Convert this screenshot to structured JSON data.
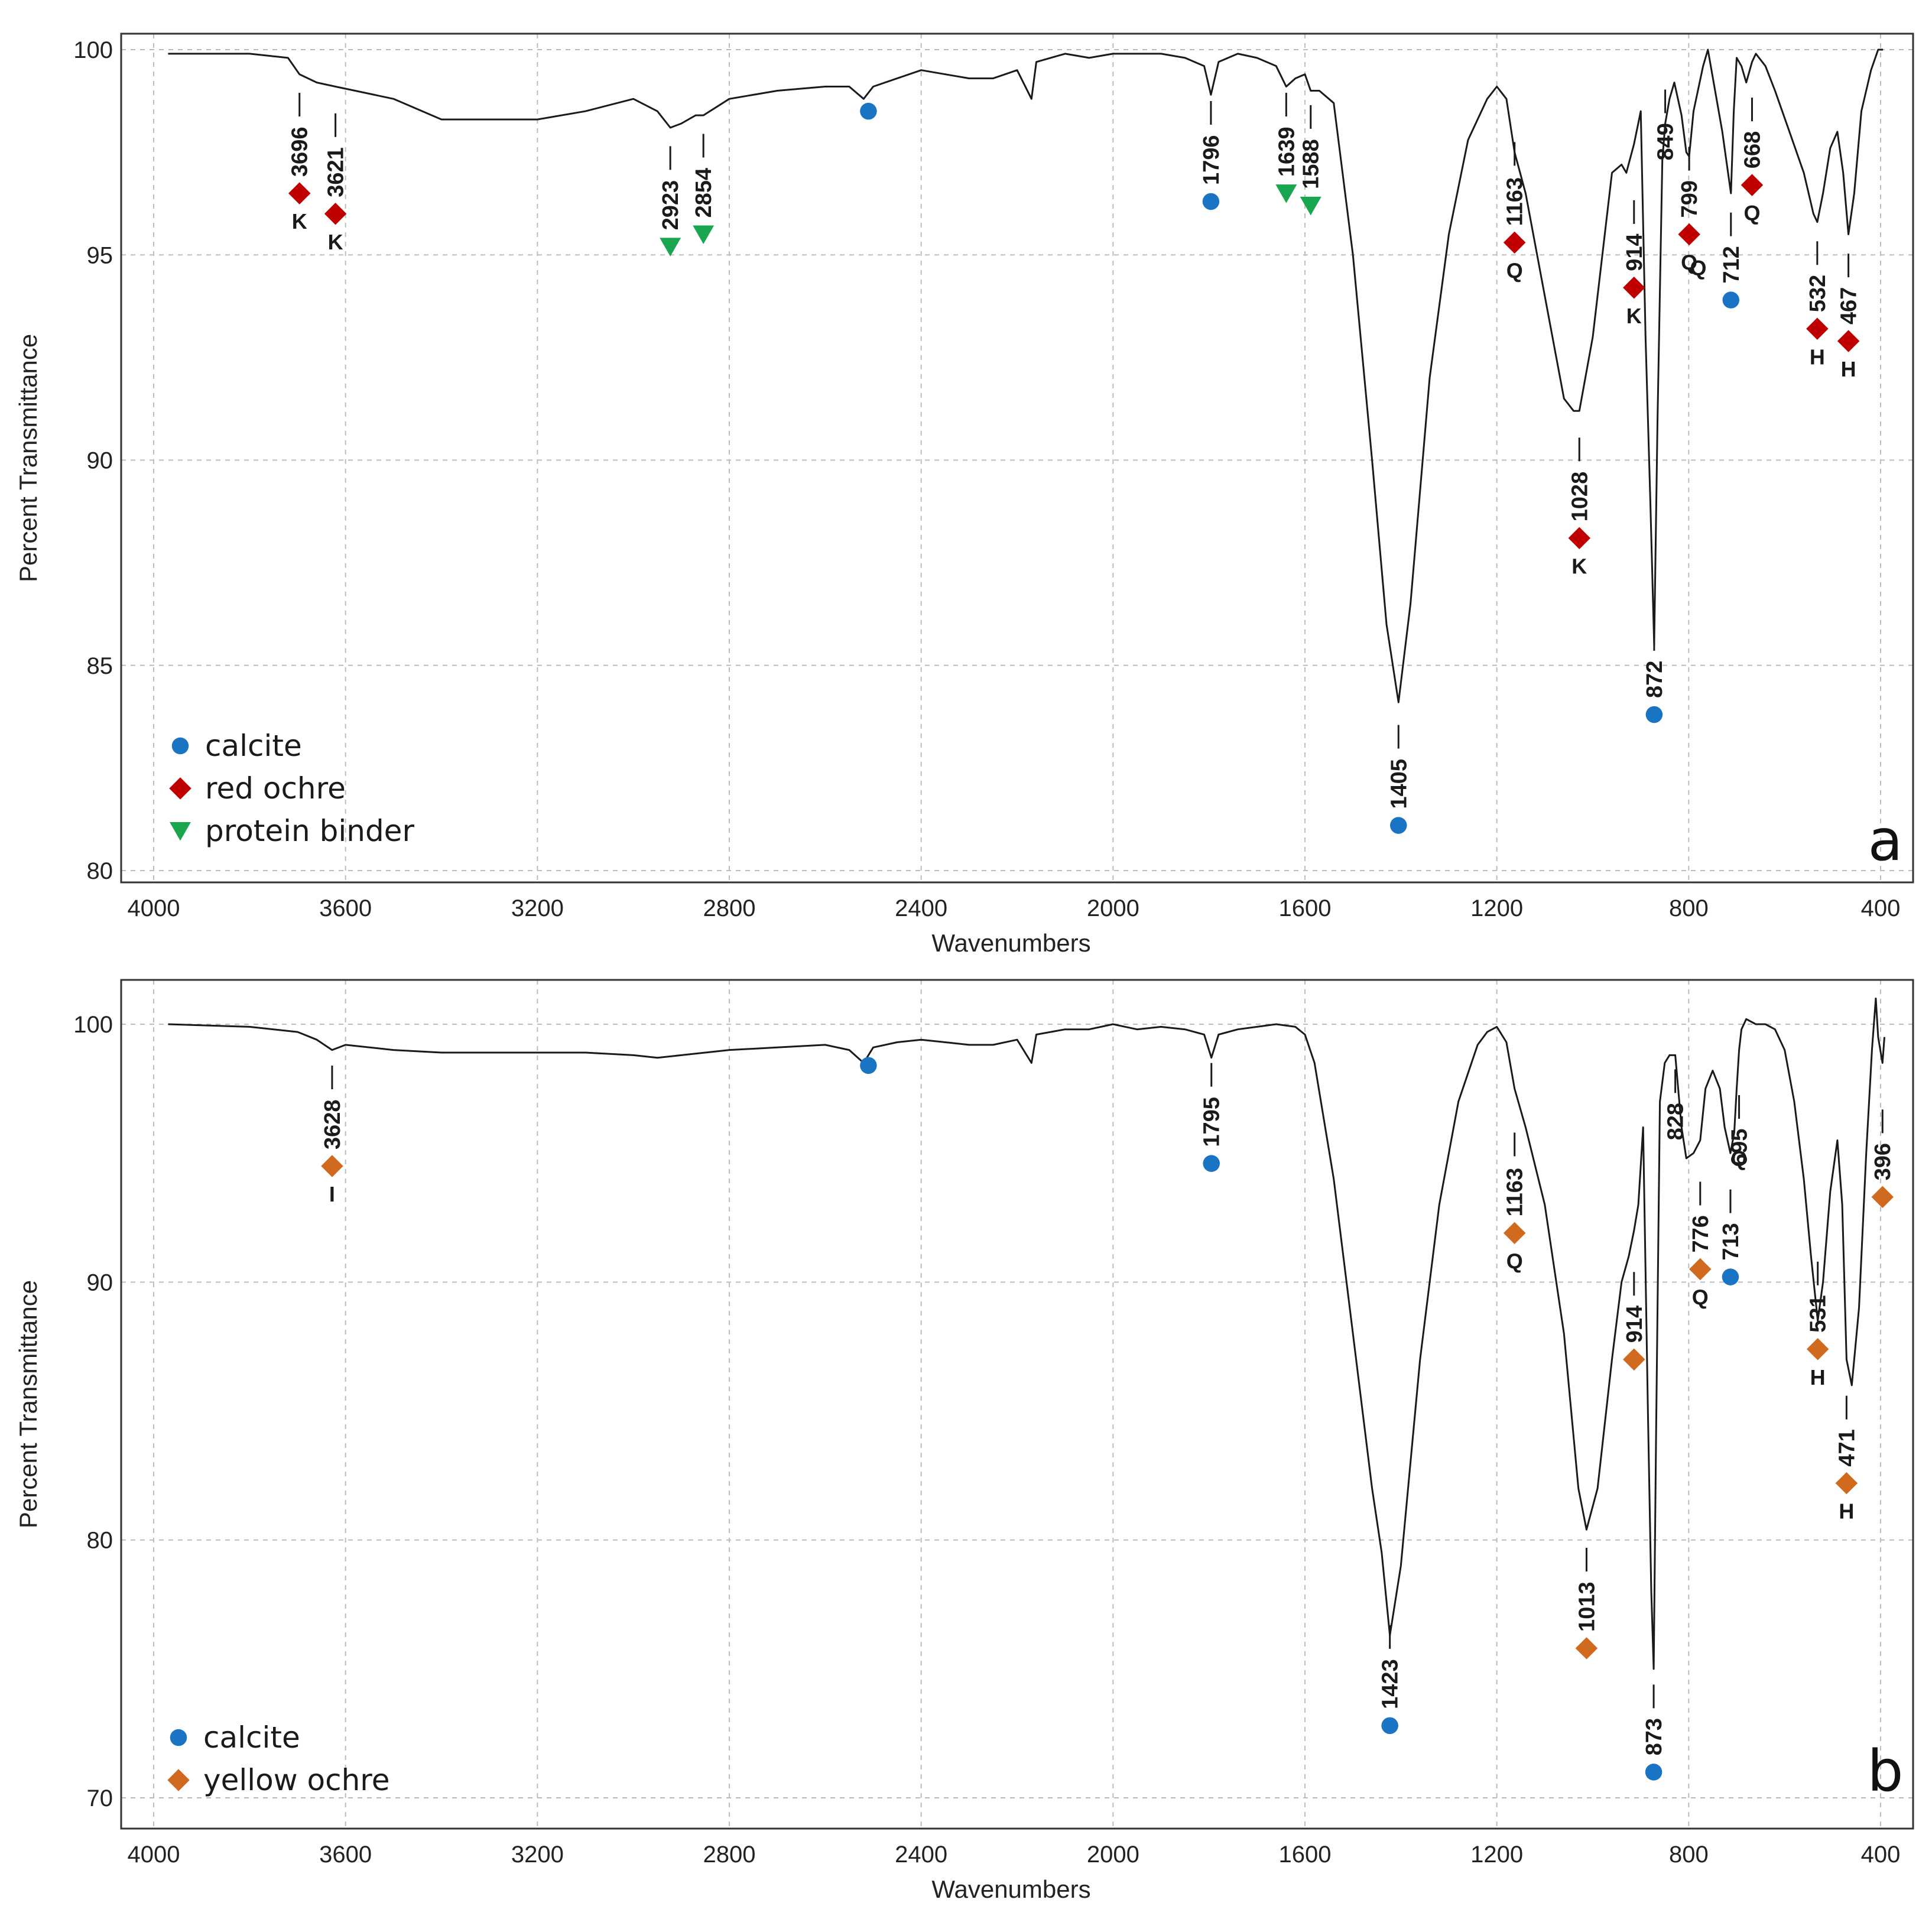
{
  "colors": {
    "calcite": "#1a74c4",
    "red_ochre": "#c00000",
    "protein_binder": "#1aa54f",
    "yellow_ochre": "#d06a1e",
    "line": "#1a1a1a"
  },
  "chart_data": [
    {
      "type": "line",
      "panel_label": "a",
      "xlabel": "Wavenumbers",
      "ylabel": "Percent Transmittance",
      "xlim": [
        4000,
        400
      ],
      "ylim": [
        80,
        100
      ],
      "xticks": [
        4000,
        3600,
        3200,
        2800,
        2400,
        2000,
        1600,
        1200,
        800,
        400
      ],
      "yticks": [
        80,
        85,
        90,
        95,
        100
      ],
      "grid": true,
      "legend_position": "bottom-left",
      "legend": [
        {
          "label": "calcite",
          "marker": "circle",
          "color": "#1a74c4"
        },
        {
          "label": "red ochre",
          "marker": "diamond",
          "color": "#c00000"
        },
        {
          "label": "protein binder",
          "marker": "triangle-down",
          "color": "#1aa54f"
        }
      ],
      "series": [
        {
          "name": "spectrum",
          "x": [
            3970,
            3800,
            3720,
            3696,
            3660,
            3621,
            3580,
            3500,
            3400,
            3350,
            3200,
            3100,
            3000,
            2950,
            2923,
            2900,
            2870,
            2854,
            2800,
            2700,
            2600,
            2550,
            2520,
            2500,
            2450,
            2400,
            2350,
            2300,
            2250,
            2200,
            2170,
            2160,
            2100,
            2050,
            2000,
            1950,
            1900,
            1850,
            1810,
            1796,
            1780,
            1740,
            1700,
            1660,
            1639,
            1620,
            1600,
            1588,
            1570,
            1540,
            1500,
            1460,
            1430,
            1405,
            1380,
            1340,
            1300,
            1260,
            1220,
            1200,
            1180,
            1163,
            1140,
            1100,
            1060,
            1040,
            1028,
            1000,
            960,
            940,
            930,
            914,
            900,
            890,
            880,
            872,
            865,
            855,
            849,
            840,
            830,
            815,
            805,
            799,
            790,
            770,
            760,
            745,
            730,
            718,
            712,
            706,
            700,
            690,
            680,
            668,
            660,
            640,
            620,
            590,
            560,
            540,
            532,
            520,
            505,
            490,
            478,
            467,
            455,
            440,
            420,
            405,
            395
          ],
          "y": [
            99.9,
            99.9,
            99.8,
            99.4,
            99.2,
            99.1,
            99.0,
            98.8,
            98.3,
            98.3,
            98.3,
            98.5,
            98.8,
            98.5,
            98.1,
            98.2,
            98.4,
            98.4,
            98.8,
            99.0,
            99.1,
            99.1,
            98.8,
            99.1,
            99.3,
            99.5,
            99.4,
            99.3,
            99.3,
            99.5,
            98.8,
            99.7,
            99.9,
            99.8,
            99.9,
            99.9,
            99.9,
            99.8,
            99.6,
            98.9,
            99.7,
            99.9,
            99.8,
            99.6,
            99.1,
            99.3,
            99.4,
            99.0,
            99.0,
            98.7,
            95.0,
            90.0,
            86.0,
            84.1,
            86.5,
            92.0,
            95.5,
            97.8,
            98.8,
            99.1,
            98.8,
            97.5,
            96.5,
            94.0,
            91.5,
            91.2,
            91.2,
            93.0,
            97.0,
            97.2,
            97.0,
            97.7,
            98.5,
            93.0,
            89.0,
            85.5,
            91.0,
            97.3,
            98.2,
            98.8,
            99.2,
            98.4,
            97.5,
            97.4,
            98.5,
            99.6,
            100.0,
            99.0,
            98.0,
            97.0,
            96.5,
            98.5,
            99.8,
            99.6,
            99.2,
            99.7,
            99.9,
            99.6,
            99.0,
            98.0,
            97.0,
            96.0,
            95.8,
            96.5,
            97.6,
            98.0,
            97.0,
            95.5,
            96.5,
            98.5,
            99.5,
            100.0,
            100.0
          ]
        }
      ],
      "annotations": [
        {
          "label": "3696",
          "x": 3696,
          "marker": "diamond",
          "color": "#c00000",
          "marker_y": 96.5,
          "code": "K"
        },
        {
          "label": "3621",
          "x": 3621,
          "marker": "diamond",
          "color": "#c00000",
          "marker_y": 96.0,
          "code": "K"
        },
        {
          "label": "2923",
          "x": 2923,
          "marker": "triangle-down",
          "color": "#1aa54f",
          "marker_y": 95.2,
          "code": ""
        },
        {
          "label": "2854",
          "x": 2854,
          "marker": "triangle-down",
          "color": "#1aa54f",
          "marker_y": 95.5,
          "code": ""
        },
        {
          "label": "",
          "x": 2510,
          "marker": "circle",
          "color": "#1a74c4",
          "marker_y": 98.5,
          "code": ""
        },
        {
          "label": "1796",
          "x": 1796,
          "marker": "circle",
          "color": "#1a74c4",
          "marker_y": 96.3,
          "code": ""
        },
        {
          "label": "1639",
          "x": 1639,
          "marker": "triangle-down",
          "color": "#1aa54f",
          "marker_y": 96.5,
          "code": ""
        },
        {
          "label": "1588",
          "x": 1588,
          "marker": "triangle-down",
          "color": "#1aa54f",
          "marker_y": 96.2,
          "code": ""
        },
        {
          "label": "1405",
          "x": 1405,
          "marker": "circle",
          "color": "#1a74c4",
          "marker_y": 81.1,
          "code": ""
        },
        {
          "label": "1163",
          "x": 1163,
          "marker": "diamond",
          "color": "#c00000",
          "marker_y": 95.3,
          "code": "Q"
        },
        {
          "label": "1028",
          "x": 1028,
          "marker": "diamond",
          "color": "#c00000",
          "marker_y": 88.1,
          "code": "K"
        },
        {
          "label": "914",
          "x": 914,
          "marker": "diamond",
          "color": "#c00000",
          "marker_y": 94.2,
          "code": "K"
        },
        {
          "label": "872",
          "x": 872,
          "marker": "circle",
          "color": "#1a74c4",
          "marker_y": 83.8,
          "code": ""
        },
        {
          "label": "849",
          "x": 849,
          "marker": "",
          "color": "",
          "marker_y": null,
          "code": ""
        },
        {
          "label": "799",
          "x": 799,
          "marker": "diamond",
          "color": "#c00000",
          "marker_y": 95.5,
          "code": "Q"
        },
        {
          "label": "",
          "x": 780,
          "marker": "",
          "color": "",
          "marker_y": null,
          "code": "Q"
        },
        {
          "label": "712",
          "x": 712,
          "marker": "circle",
          "color": "#1a74c4",
          "marker_y": 93.9,
          "code": ""
        },
        {
          "label": "668",
          "x": 668,
          "marker": "diamond",
          "color": "#c00000",
          "marker_y": 96.7,
          "code": "Q"
        },
        {
          "label": "532",
          "x": 532,
          "marker": "diamond",
          "color": "#c00000",
          "marker_y": 93.2,
          "code": "H"
        },
        {
          "label": "467",
          "x": 467,
          "marker": "diamond",
          "color": "#c00000",
          "marker_y": 92.9,
          "code": "H"
        }
      ]
    },
    {
      "type": "line",
      "panel_label": "b",
      "xlabel": "Wavenumbers",
      "ylabel": "Percent Transmittance",
      "xlim": [
        4000,
        400
      ],
      "ylim": [
        70,
        100
      ],
      "xticks": [
        4000,
        3600,
        3200,
        2800,
        2400,
        2000,
        1600,
        1200,
        800,
        400
      ],
      "yticks": [
        70,
        80,
        90,
        100
      ],
      "grid": true,
      "legend_position": "bottom-left",
      "legend": [
        {
          "label": "calcite",
          "marker": "circle",
          "color": "#1a74c4"
        },
        {
          "label": "yellow ochre",
          "marker": "diamond",
          "color": "#d06a1e"
        }
      ],
      "series": [
        {
          "name": "spectrum",
          "x": [
            3970,
            3800,
            3700,
            3660,
            3628,
            3600,
            3500,
            3400,
            3300,
            3200,
            3100,
            3000,
            2950,
            2900,
            2850,
            2800,
            2700,
            2600,
            2550,
            2520,
            2500,
            2450,
            2400,
            2350,
            2300,
            2250,
            2200,
            2170,
            2160,
            2100,
            2050,
            2000,
            1950,
            1900,
            1850,
            1810,
            1795,
            1780,
            1740,
            1700,
            1660,
            1620,
            1600,
            1580,
            1540,
            1500,
            1460,
            1440,
            1423,
            1400,
            1360,
            1320,
            1280,
            1240,
            1220,
            1200,
            1180,
            1163,
            1140,
            1100,
            1060,
            1030,
            1013,
            990,
            960,
            940,
            925,
            914,
            905,
            895,
            885,
            878,
            873,
            868,
            860,
            850,
            840,
            828,
            815,
            805,
            790,
            776,
            765,
            750,
            735,
            725,
            713,
            705,
            700,
            695,
            690,
            680,
            660,
            640,
            620,
            600,
            580,
            560,
            545,
            531,
            520,
            505,
            490,
            480,
            471,
            460,
            445,
            430,
            418,
            410,
            405,
            396,
            392
          ],
          "y": [
            100,
            99.9,
            99.7,
            99.4,
            99.0,
            99.2,
            99.0,
            98.9,
            98.9,
            98.9,
            98.9,
            98.8,
            98.7,
            98.8,
            98.9,
            99.0,
            99.1,
            99.2,
            99.0,
            98.5,
            99.1,
            99.3,
            99.4,
            99.3,
            99.2,
            99.2,
            99.4,
            98.5,
            99.6,
            99.8,
            99.8,
            100,
            99.8,
            99.9,
            99.8,
            99.6,
            98.7,
            99.6,
            99.8,
            99.9,
            100,
            99.9,
            99.6,
            98.5,
            94.0,
            88.0,
            82.0,
            79.5,
            76.3,
            79.0,
            87.0,
            93.0,
            97.0,
            99.2,
            99.7,
            99.9,
            99.3,
            97.5,
            96.0,
            93.0,
            88.0,
            82.0,
            80.4,
            82.0,
            87.0,
            90.0,
            91.0,
            92.0,
            93.0,
            96.0,
            85.0,
            78.0,
            75.0,
            84.0,
            97.0,
            98.5,
            98.8,
            98.8,
            96.0,
            94.8,
            95.0,
            95.5,
            97.5,
            98.2,
            97.5,
            96.0,
            95.0,
            95.8,
            97.5,
            99.0,
            99.8,
            100.2,
            100,
            100,
            99.8,
            99.0,
            97.0,
            94.0,
            91.0,
            88.5,
            90.0,
            93.5,
            95.5,
            93.0,
            87.0,
            86.0,
            89.0,
            95.0,
            99.0,
            101.0,
            99.5,
            98.5,
            99.5
          ]
        }
      ],
      "annotations": [
        {
          "label": "3628",
          "x": 3628,
          "marker": "diamond",
          "color": "#d06a1e",
          "marker_y": 94.5,
          "code": "I"
        },
        {
          "label": "",
          "x": 2510,
          "marker": "circle",
          "color": "#1a74c4",
          "marker_y": 98.4,
          "code": ""
        },
        {
          "label": "1795",
          "x": 1795,
          "marker": "circle",
          "color": "#1a74c4",
          "marker_y": 94.6,
          "code": ""
        },
        {
          "label": "1423",
          "x": 1423,
          "marker": "circle",
          "color": "#1a74c4",
          "marker_y": 72.8,
          "code": ""
        },
        {
          "label": "1163",
          "x": 1163,
          "marker": "diamond",
          "color": "#d06a1e",
          "marker_y": 91.9,
          "code": "Q"
        },
        {
          "label": "1013",
          "x": 1013,
          "marker": "diamond",
          "color": "#d06a1e",
          "marker_y": 75.8,
          "code": ""
        },
        {
          "label": "914",
          "x": 914,
          "marker": "diamond",
          "color": "#d06a1e",
          "marker_y": 87.0,
          "code": ""
        },
        {
          "label": "873",
          "x": 873,
          "marker": "circle",
          "color": "#1a74c4",
          "marker_y": 71.0,
          "code": ""
        },
        {
          "label": "828",
          "x": 828,
          "marker": "",
          "color": "",
          "marker_y": null,
          "code": ""
        },
        {
          "label": "776",
          "x": 776,
          "marker": "diamond",
          "color": "#d06a1e",
          "marker_y": 90.5,
          "code": "Q"
        },
        {
          "label": "713",
          "x": 713,
          "marker": "circle",
          "color": "#1a74c4",
          "marker_y": 90.2,
          "code": ""
        },
        {
          "label": "695",
          "x": 695,
          "marker": "",
          "color": "",
          "marker_y": null,
          "code": "Q"
        },
        {
          "label": "531",
          "x": 531,
          "marker": "diamond",
          "color": "#d06a1e",
          "marker_y": 87.4,
          "code": "H"
        },
        {
          "label": "471",
          "x": 471,
          "marker": "diamond",
          "color": "#d06a1e",
          "marker_y": 82.2,
          "code": "H"
        },
        {
          "label": "396",
          "x": 396,
          "marker": "diamond",
          "color": "#d06a1e",
          "marker_y": 93.3,
          "code": ""
        }
      ]
    }
  ]
}
